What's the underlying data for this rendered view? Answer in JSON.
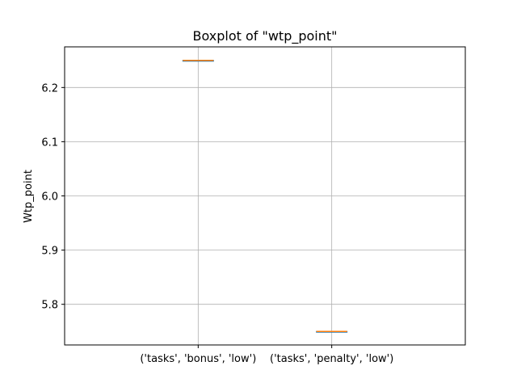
{
  "chart_data": {
    "type": "boxplot",
    "title": "Boxplot of \"wtp_point\"",
    "xlabel": "",
    "ylabel": "Wtp_point",
    "categories": [
      "('tasks', 'bonus', 'low')",
      "('tasks', 'penalty', 'low')"
    ],
    "series": [
      {
        "values": [
          {
            "min": 6.25,
            "q1": 6.25,
            "median": 6.25,
            "q3": 6.25,
            "max": 6.25
          },
          {
            "min": 5.75,
            "q1": 5.75,
            "median": 5.75,
            "q3": 5.75,
            "max": 5.75
          }
        ]
      }
    ],
    "ylim": [
      5.725,
      6.275
    ],
    "yticks": [
      5.8,
      5.9,
      6.0,
      6.1,
      6.2
    ],
    "ytick_labels": [
      "5.8",
      "5.9",
      "6.0",
      "6.1",
      "6.2"
    ],
    "grid": true,
    "colors": {
      "box": "#1f77b4",
      "median": "#ff7f0e",
      "grid": "#b0b0b0",
      "axis": "#000000"
    }
  }
}
